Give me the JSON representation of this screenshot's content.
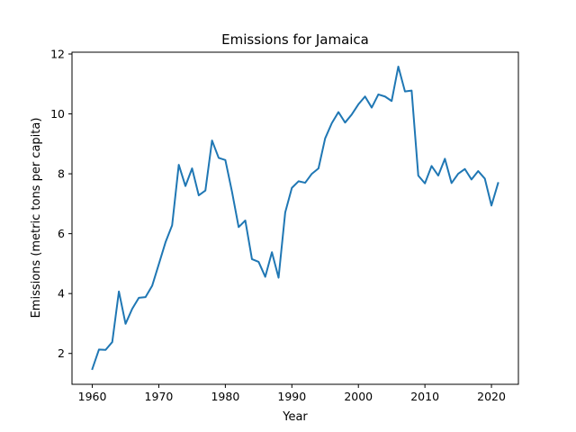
{
  "chart_data": {
    "type": "line",
    "title": "Emissions for Jamaica",
    "xlabel": "Year",
    "ylabel": "Emissions (metric tons per capita)",
    "xlim": [
      1956.95,
      2024.05
    ],
    "ylim": [
      0.97,
      12.06
    ],
    "xticks": [
      1960,
      1970,
      1980,
      1990,
      2000,
      2010,
      2020
    ],
    "yticks": [
      2,
      4,
      6,
      8,
      10,
      12
    ],
    "grid": false,
    "color": "#1f77b4",
    "series": [
      {
        "x": [
          1960,
          1961,
          1962,
          1963,
          1964,
          1965,
          1966,
          1967,
          1968,
          1969,
          1970,
          1971,
          1972,
          1973,
          1974,
          1975,
          1976,
          1977,
          1978,
          1979,
          1980,
          1981,
          1982,
          1983,
          1984,
          1985,
          1986,
          1987,
          1988,
          1989,
          1990,
          1991,
          1992,
          1993,
          1994,
          1995,
          1996,
          1997,
          1998,
          1999,
          2000,
          2001,
          2002,
          2003,
          2004,
          2005,
          2006,
          2007,
          2008,
          2009,
          2010,
          2011,
          2012,
          2013,
          2014,
          2015,
          2016,
          2017,
          2018,
          2019,
          2020,
          2021
        ],
        "values": [
          1.48,
          2.13,
          2.12,
          2.38,
          4.07,
          2.99,
          3.49,
          3.86,
          3.88,
          4.26,
          4.98,
          5.71,
          6.28,
          8.3,
          7.59,
          8.18,
          7.28,
          7.44,
          9.11,
          8.53,
          8.46,
          7.4,
          6.22,
          6.44,
          5.15,
          5.06,
          4.56,
          5.38,
          4.53,
          6.71,
          7.53,
          7.75,
          7.7,
          8.0,
          8.18,
          9.18,
          9.69,
          10.06,
          9.71,
          9.98,
          10.32,
          10.58,
          10.21,
          10.65,
          10.58,
          10.43,
          11.58,
          10.75,
          10.78,
          7.94,
          7.68,
          8.26,
          7.94,
          8.5,
          7.69,
          8.0,
          8.16,
          7.81,
          8.09,
          7.84,
          6.94,
          7.69
        ]
      }
    ]
  }
}
